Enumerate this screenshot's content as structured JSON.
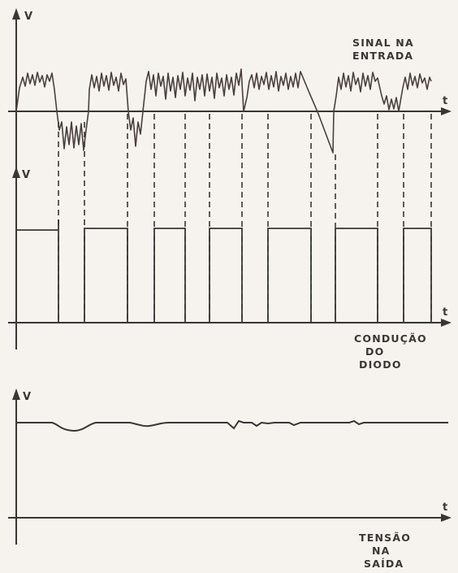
{
  "panels": [
    {
      "y_axis_label": "V",
      "x_axis_label": "t",
      "caption_lines": [
        "SINAL NA",
        "ENTRADA"
      ]
    },
    {
      "y_axis_label": "V",
      "x_axis_label": "t",
      "caption_lines": [
        "CONDUÇÃO",
        "DO",
        "DIODO"
      ]
    },
    {
      "y_axis_label": "V",
      "x_axis_label": "t",
      "caption_lines": [
        "TENSÃO",
        "NA",
        "SAÍDA"
      ]
    }
  ]
}
